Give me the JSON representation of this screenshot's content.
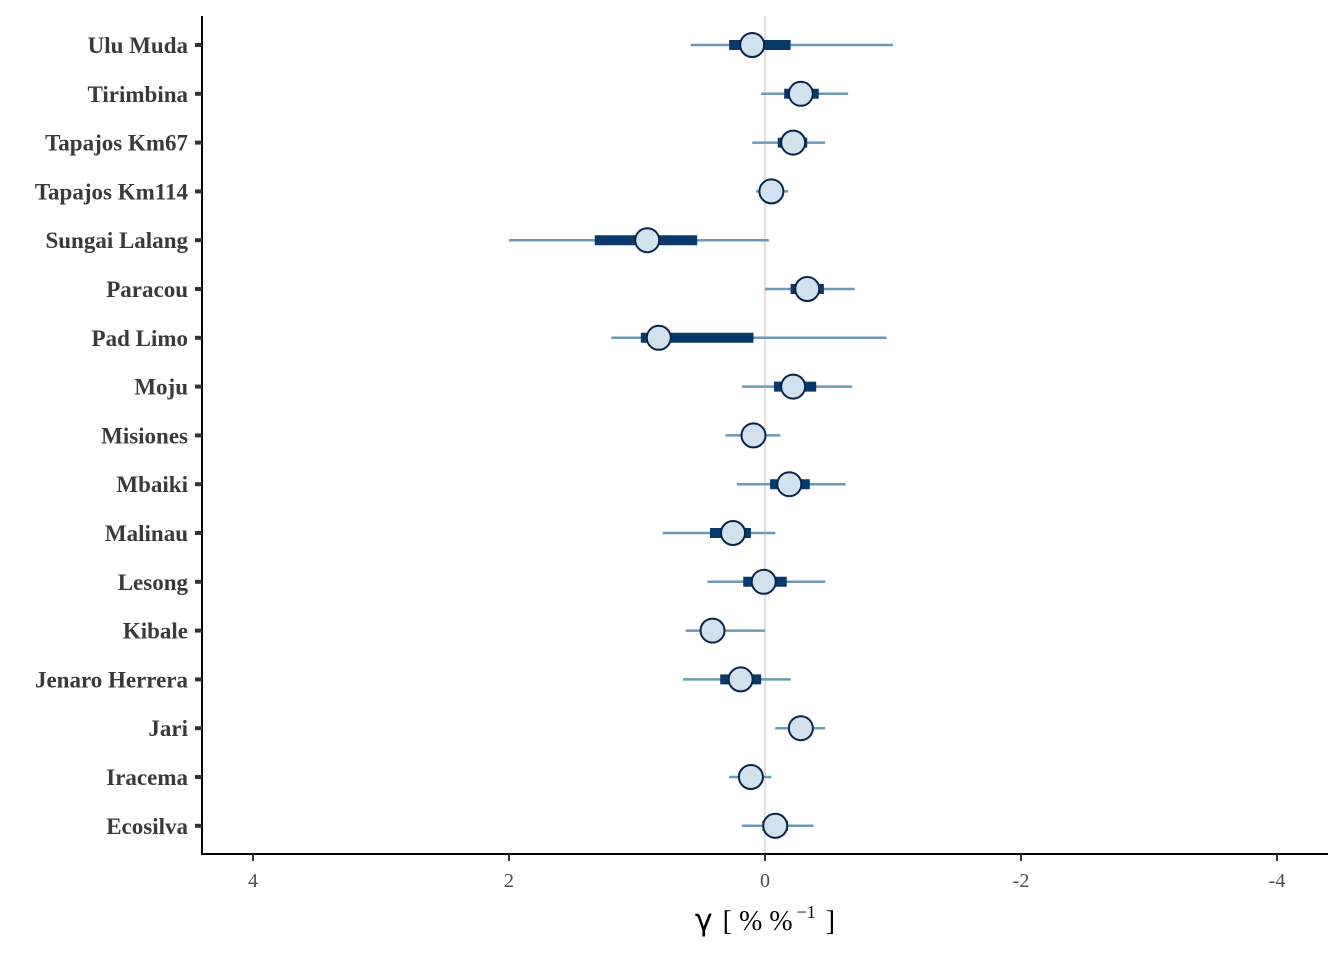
{
  "chart_data": {
    "type": "forest",
    "xlabel": {
      "symbol": "γ",
      "open": "[ % %",
      "exponent": "−1",
      "close": "]"
    },
    "x_reversed": true,
    "xlim": [
      4.4,
      -4.4
    ],
    "x_ticks": [
      4,
      2,
      0,
      -2,
      -4
    ],
    "x_tick_labels": [
      "4",
      "2",
      "0",
      "-2",
      "-4"
    ],
    "reference_line": 0,
    "grid": false,
    "colors": {
      "thin_interval": "#6a9ab5",
      "thick_interval": "#08396b",
      "point_fill": "#d2e1ee",
      "point_stroke": "#08244a",
      "reference_line": "#e3e3e3",
      "axis": "#000000"
    },
    "categories": [
      "Ulu Muda",
      "Tirimbina",
      "Tapajos Km67",
      "Tapajos Km114",
      "Sungai Lalang",
      "Paracou",
      "Pad Limo",
      "Moju",
      "Misiones",
      "Mbaiki",
      "Malinau",
      "Lesong",
      "Kibale",
      "Jenaro Herrera",
      "Jari",
      "Iracema",
      "Ecosilva"
    ],
    "series": [
      {
        "name": "Ulu Muda",
        "estimate": 0.1,
        "thin": [
          0.58,
          -1.0
        ],
        "thick": [
          0.28,
          -0.2
        ]
      },
      {
        "name": "Tirimbina",
        "estimate": -0.28,
        "thin": [
          0.03,
          -0.65
        ],
        "thick": [
          -0.15,
          -0.42
        ]
      },
      {
        "name": "Tapajos Km67",
        "estimate": -0.22,
        "thin": [
          0.1,
          -0.47
        ],
        "thick": [
          -0.1,
          -0.33
        ]
      },
      {
        "name": "Tapajos Km114",
        "estimate": -0.05,
        "thin": [
          0.07,
          -0.18
        ],
        "thick": [
          0.02,
          -0.12
        ]
      },
      {
        "name": "Sungai Lalang",
        "estimate": 0.92,
        "thin": [
          2.0,
          -0.03
        ],
        "thick": [
          1.33,
          0.53
        ]
      },
      {
        "name": "Paracou",
        "estimate": -0.33,
        "thin": [
          0.0,
          -0.7
        ],
        "thick": [
          -0.2,
          -0.46
        ]
      },
      {
        "name": "Pad Limo",
        "estimate": 0.83,
        "thin": [
          1.2,
          -0.95
        ],
        "thick": [
          0.97,
          0.09
        ]
      },
      {
        "name": "Moju",
        "estimate": -0.22,
        "thin": [
          0.18,
          -0.68
        ],
        "thick": [
          -0.07,
          -0.4
        ]
      },
      {
        "name": "Misiones",
        "estimate": 0.09,
        "thin": [
          0.31,
          -0.12
        ],
        "thick": [
          0.16,
          0.02
        ]
      },
      {
        "name": "Mbaiki",
        "estimate": -0.19,
        "thin": [
          0.22,
          -0.63
        ],
        "thick": [
          -0.04,
          -0.35
        ]
      },
      {
        "name": "Malinau",
        "estimate": 0.25,
        "thin": [
          0.8,
          -0.08
        ],
        "thick": [
          0.43,
          0.11
        ]
      },
      {
        "name": "Lesong",
        "estimate": 0.01,
        "thin": [
          0.45,
          -0.47
        ],
        "thick": [
          0.17,
          -0.17
        ]
      },
      {
        "name": "Kibale",
        "estimate": 0.41,
        "thin": [
          0.62,
          0.0
        ],
        "thick": [
          0.47,
          0.35
        ]
      },
      {
        "name": "Jenaro Herrera",
        "estimate": 0.19,
        "thin": [
          0.64,
          -0.2
        ],
        "thick": [
          0.35,
          0.03
        ]
      },
      {
        "name": "Jari",
        "estimate": -0.28,
        "thin": [
          -0.08,
          -0.47
        ],
        "thick": [
          -0.2,
          -0.36
        ]
      },
      {
        "name": "Iracema",
        "estimate": 0.11,
        "thin": [
          0.28,
          -0.05
        ],
        "thick": [
          0.17,
          0.05
        ]
      },
      {
        "name": "Ecosilva",
        "estimate": -0.08,
        "thin": [
          0.18,
          -0.38
        ],
        "thick": [
          0.02,
          -0.18
        ]
      }
    ]
  }
}
